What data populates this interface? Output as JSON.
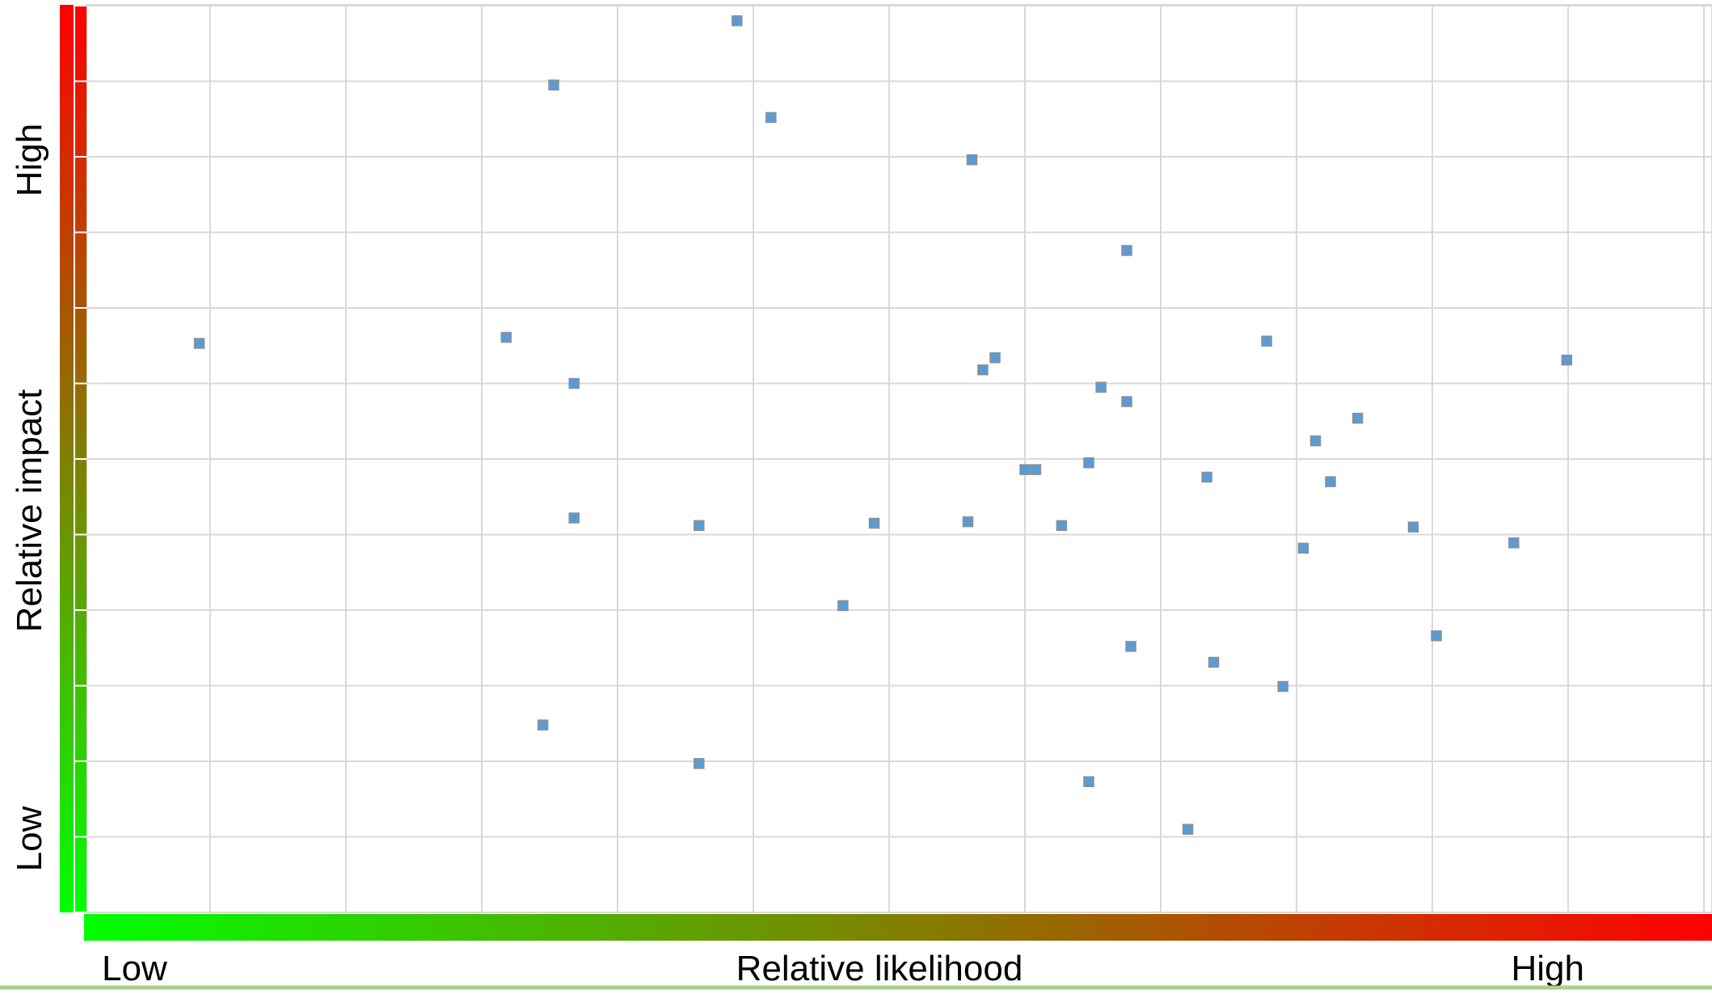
{
  "chart_data": {
    "type": "scatter",
    "title": "",
    "xlabel": "Relative likelihood",
    "ylabel": "Relative impact",
    "x_axis_labels": {
      "low": "Low",
      "high": "High"
    },
    "y_axis_labels": {
      "low": "Low",
      "high": "High"
    },
    "xlim": [
      0,
      12
    ],
    "ylim": [
      0,
      12
    ],
    "grid": true,
    "legend": "none",
    "gradient_colors": {
      "low": "#00ff00",
      "mid": "#808000",
      "high": "#ff0000"
    },
    "point_color": "#5b9bd5",
    "series": [
      {
        "points": [
          {
            "x": 0.92,
            "y": 7.53
          },
          {
            "x": 3.18,
            "y": 7.61
          },
          {
            "x": 3.53,
            "y": 10.95
          },
          {
            "x": 3.45,
            "y": 2.48
          },
          {
            "x": 3.68,
            "y": 7.0
          },
          {
            "x": 3.68,
            "y": 5.22
          },
          {
            "x": 4.6,
            "y": 5.12
          },
          {
            "x": 4.6,
            "y": 1.97
          },
          {
            "x": 4.88,
            "y": 11.8
          },
          {
            "x": 5.13,
            "y": 10.52
          },
          {
            "x": 5.66,
            "y": 4.06
          },
          {
            "x": 5.89,
            "y": 5.15
          },
          {
            "x": 6.58,
            "y": 5.17
          },
          {
            "x": 6.61,
            "y": 9.96
          },
          {
            "x": 6.69,
            "y": 7.18
          },
          {
            "x": 6.78,
            "y": 7.34
          },
          {
            "x": 7.0,
            "y": 5.86
          },
          {
            "x": 7.08,
            "y": 5.86
          },
          {
            "x": 7.27,
            "y": 5.12
          },
          {
            "x": 7.47,
            "y": 5.95
          },
          {
            "x": 7.47,
            "y": 1.73
          },
          {
            "x": 7.56,
            "y": 6.95
          },
          {
            "x": 7.75,
            "y": 8.76
          },
          {
            "x": 7.75,
            "y": 6.76
          },
          {
            "x": 7.78,
            "y": 3.52
          },
          {
            "x": 8.2,
            "y": 1.1
          },
          {
            "x": 8.34,
            "y": 5.76
          },
          {
            "x": 8.39,
            "y": 3.31
          },
          {
            "x": 8.78,
            "y": 7.56
          },
          {
            "x": 8.9,
            "y": 2.99
          },
          {
            "x": 9.05,
            "y": 4.82
          },
          {
            "x": 9.14,
            "y": 6.24
          },
          {
            "x": 9.25,
            "y": 5.7
          },
          {
            "x": 9.45,
            "y": 6.54
          },
          {
            "x": 9.86,
            "y": 5.1
          },
          {
            "x": 10.03,
            "y": 3.66
          },
          {
            "x": 10.6,
            "y": 4.89
          },
          {
            "x": 10.99,
            "y": 7.31
          }
        ]
      }
    ]
  }
}
